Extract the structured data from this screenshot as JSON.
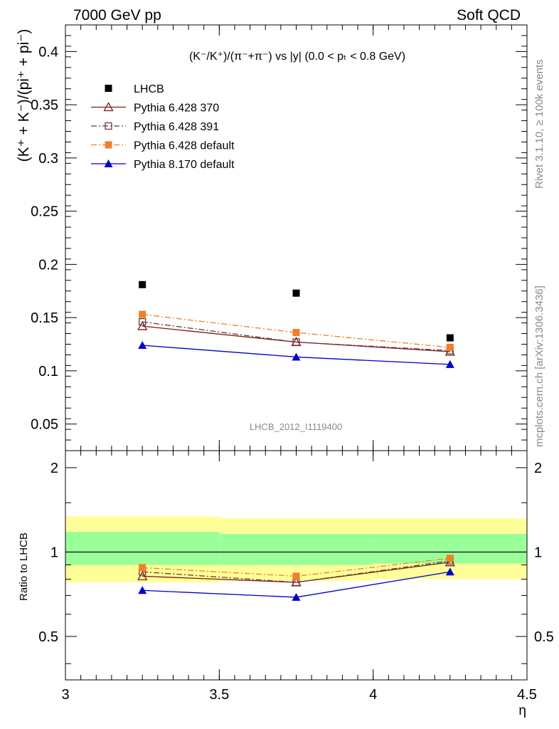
{
  "header": {
    "left": "7000 GeV pp",
    "right": "Soft QCD"
  },
  "side_labels": {
    "rivet": "Rivet 3.1.10, ≥ 100k events",
    "mcplots": "mcplots.cern.ch [arXiv:1306.3436]"
  },
  "watermark": "LHCB_2012_I1119400",
  "chart_data": [
    {
      "type": "scatter",
      "title": "(K⁻/K⁺)/(π⁻+π⁻) vs |y| (0.0 < pₜ < 0.8 GeV)",
      "ylabel": "(K⁺ + K⁻)/(pi⁺ + pi⁻)",
      "xlabel": "",
      "xlim": [
        3,
        4.5
      ],
      "ylim": [
        0.025,
        0.425
      ],
      "x_ticks": [
        "3",
        "3.5",
        "4",
        "4.5"
      ],
      "y_ticks": [
        "0.05",
        "0.1",
        "0.15",
        "0.2",
        "0.25",
        "0.3",
        "0.35",
        "0.4"
      ],
      "legend_position": "top-left",
      "x": [
        3.25,
        3.75,
        4.25
      ],
      "series": [
        {
          "name": "LHCB",
          "values": [
            0.181,
            0.173,
            0.131
          ],
          "color": "#000000",
          "marker": "square-filled",
          "line": "none"
        },
        {
          "name": "Pythia 6.428 370",
          "values": [
            0.142,
            0.127,
            0.118
          ],
          "color": "#7b1a1a",
          "marker": "triangle-open",
          "line": "solid"
        },
        {
          "name": "Pythia 6.428 391",
          "values": [
            0.146,
            0.127,
            0.119
          ],
          "color": "#6e3a3a",
          "marker": "square-open",
          "line": "dashdot"
        },
        {
          "name": "Pythia 6.428 default",
          "values": [
            0.153,
            0.136,
            0.122
          ],
          "color": "#f07f2a",
          "marker": "square-filled",
          "line": "dashdot"
        },
        {
          "name": "Pythia 8.170 default",
          "values": [
            0.124,
            0.113,
            0.106
          ],
          "color": "#0000cc",
          "marker": "triangle-filled",
          "line": "solid"
        }
      ]
    },
    {
      "type": "line",
      "ylabel": "Ratio to LHCB",
      "xlabel": "η",
      "xlim": [
        3,
        4.5
      ],
      "ylim": [
        0.35,
        2.3
      ],
      "x_ticks": [
        "3",
        "3.5",
        "4",
        "4.5"
      ],
      "y_ticks": [
        "0.5",
        "1",
        "2"
      ],
      "bands": [
        {
          "x0": 3.0,
          "x1": 3.5,
          "yellow": [
            0.78,
            1.34
          ],
          "green": [
            0.9,
            1.18
          ]
        },
        {
          "x0": 3.5,
          "x1": 4.0,
          "yellow": [
            0.79,
            1.32
          ],
          "green": [
            0.9,
            1.16
          ]
        },
        {
          "x0": 4.0,
          "x1": 4.5,
          "yellow": [
            0.8,
            1.32
          ],
          "green": [
            0.91,
            1.16
          ]
        }
      ],
      "x": [
        3.25,
        3.75,
        4.25
      ],
      "series": [
        {
          "name": "Pythia 6.428 370",
          "values": [
            0.82,
            0.78,
            0.92
          ],
          "color": "#7b1a1a",
          "marker": "triangle-open",
          "line": "solid"
        },
        {
          "name": "Pythia 6.428 391",
          "values": [
            0.85,
            0.78,
            0.93
          ],
          "color": "#6e3a3a",
          "marker": "square-open",
          "line": "dashdot"
        },
        {
          "name": "Pythia 6.428 default",
          "values": [
            0.88,
            0.82,
            0.95
          ],
          "color": "#f07f2a",
          "marker": "square-filled",
          "line": "dashdot"
        },
        {
          "name": "Pythia 8.170 default",
          "values": [
            0.73,
            0.69,
            0.85
          ],
          "color": "#0000cc",
          "marker": "triangle-filled",
          "line": "solid"
        }
      ]
    }
  ]
}
